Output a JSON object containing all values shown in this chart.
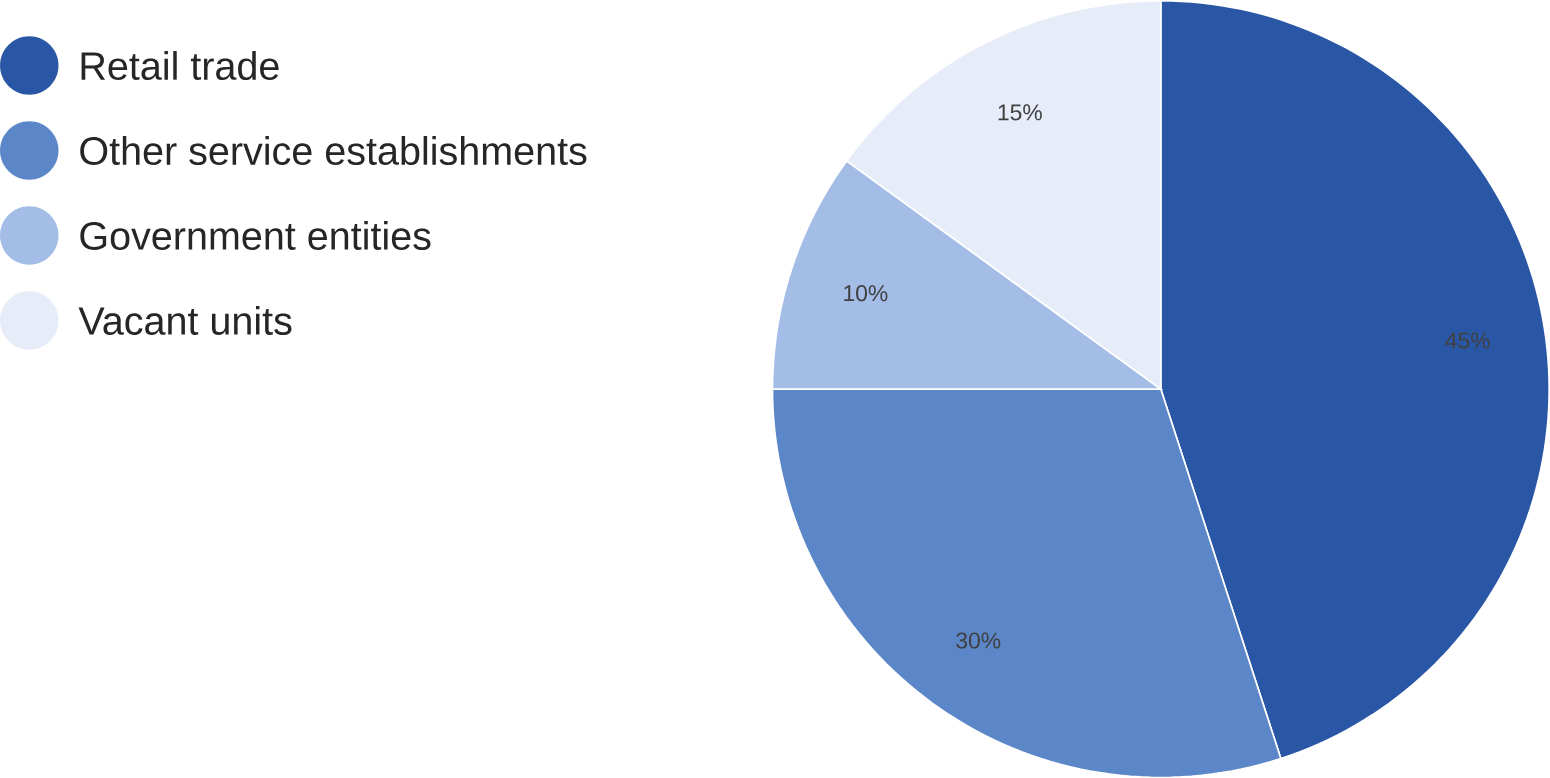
{
  "chart_data": {
    "type": "pie",
    "categories": [
      "Retail trade",
      "Other service establishments",
      "Government entities",
      "Vacant units"
    ],
    "values": [
      45,
      30,
      10,
      15
    ],
    "colors": [
      "#2a57a5",
      "#5b87c8",
      "#a3bde6",
      "#e6ecf8"
    ],
    "value_labels": [
      "45%",
      "30%",
      "10%",
      "15%"
    ],
    "legend": "top left"
  }
}
